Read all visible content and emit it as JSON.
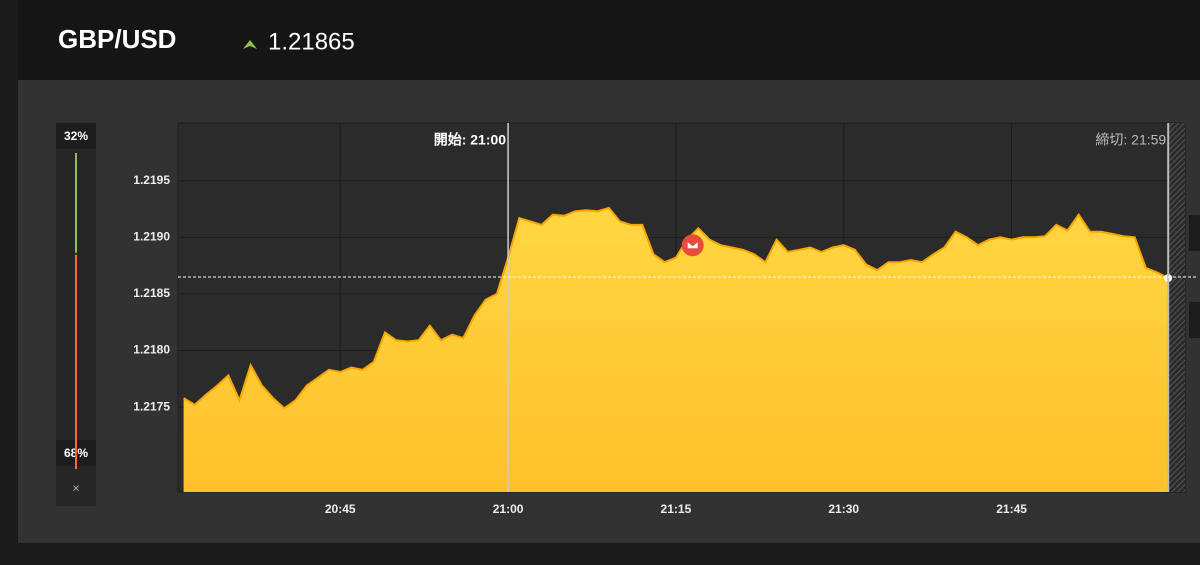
{
  "header": {
    "pair": "GBP/USD"
  },
  "sentiment": {
    "values": [
      32,
      68
    ],
    "value_labels": [
      "32%",
      "68%"
    ],
    "colors": [
      "#8bc34a",
      "#ff6a2b"
    ],
    "close": "×"
  },
  "chart_data": {
    "type": "area",
    "current_price": 1.21865,
    "color": "#ffc72c",
    "line_color": "#f7a600",
    "x": [
      1231,
      1232,
      1233,
      1234,
      1235,
      1236,
      1237,
      1238,
      1239,
      1240,
      1241,
      1242,
      1243,
      1244,
      1245,
      1246,
      1247,
      1248,
      1249,
      1250,
      1251,
      1252,
      1253,
      1254,
      1255,
      1256,
      1257,
      1258,
      1259,
      1260,
      1261,
      1262,
      1263,
      1264,
      1265,
      1266,
      1267,
      1268,
      1269,
      1270,
      1271,
      1272,
      1273,
      1274,
      1275,
      1276,
      1277,
      1278,
      1279,
      1280,
      1281,
      1282,
      1283,
      1284,
      1285,
      1286,
      1287,
      1288,
      1289,
      1290,
      1291,
      1292,
      1293,
      1294,
      1295,
      1296,
      1297,
      1298,
      1299,
      1300,
      1301,
      1302,
      1303,
      1304,
      1305,
      1306,
      1307,
      1308,
      1309,
      1310,
      1311,
      1312,
      1313,
      1314,
      1315,
      1316,
      1317,
      1318,
      1319
    ],
    "values": [
      1.21758,
      1.21752,
      1.21761,
      1.21769,
      1.21778,
      1.21756,
      1.21787,
      1.21769,
      1.21758,
      1.21749,
      1.21756,
      1.21769,
      1.21776,
      1.21783,
      1.21781,
      1.21785,
      1.21783,
      1.2179,
      1.21816,
      1.21809,
      1.21808,
      1.21809,
      1.21822,
      1.21809,
      1.21814,
      1.21811,
      1.21831,
      1.21845,
      1.2185,
      1.21882,
      1.21917,
      1.21914,
      1.21911,
      1.2192,
      1.21919,
      1.21923,
      1.21924,
      1.21923,
      1.21926,
      1.21914,
      1.21911,
      1.21911,
      1.21885,
      1.21878,
      1.21882,
      1.21898,
      1.21908,
      1.21898,
      1.21893,
      1.21891,
      1.21889,
      1.21885,
      1.21878,
      1.21898,
      1.21887,
      1.21889,
      1.21891,
      1.21887,
      1.21891,
      1.21893,
      1.21889,
      1.21876,
      1.21871,
      1.21878,
      1.21878,
      1.2188,
      1.21878,
      1.21885,
      1.21891,
      1.21905,
      1.219,
      1.21893,
      1.21898,
      1.219,
      1.21898,
      1.219,
      1.219,
      1.21901,
      1.21911,
      1.21906,
      1.2192,
      1.21905,
      1.21905,
      1.21903,
      1.21901,
      1.219,
      1.21873,
      1.21869,
      1.21864
    ],
    "xlim": [
      1230.5,
      1320.5
    ],
    "xticks": [
      {
        "value": 1245,
        "label": "20:45"
      },
      {
        "value": 1260,
        "label": "21:00"
      },
      {
        "value": 1275,
        "label": "21:15"
      },
      {
        "value": 1290,
        "label": "21:30"
      },
      {
        "value": 1305,
        "label": "21:45"
      }
    ],
    "ylim": [
      1.21675,
      1.22001
    ],
    "yticks": [
      1.2175,
      {
        "value": 1.218,
        "label": "1.2180"
      },
      1.2185,
      {
        "value": 1.219,
        "label": "1.2190"
      },
      1.2195
    ],
    "grid": true,
    "start": {
      "label": "開始: 21:00",
      "x": 1260
    },
    "end": {
      "label": "締切: 21:59",
      "x": 1319
    }
  }
}
